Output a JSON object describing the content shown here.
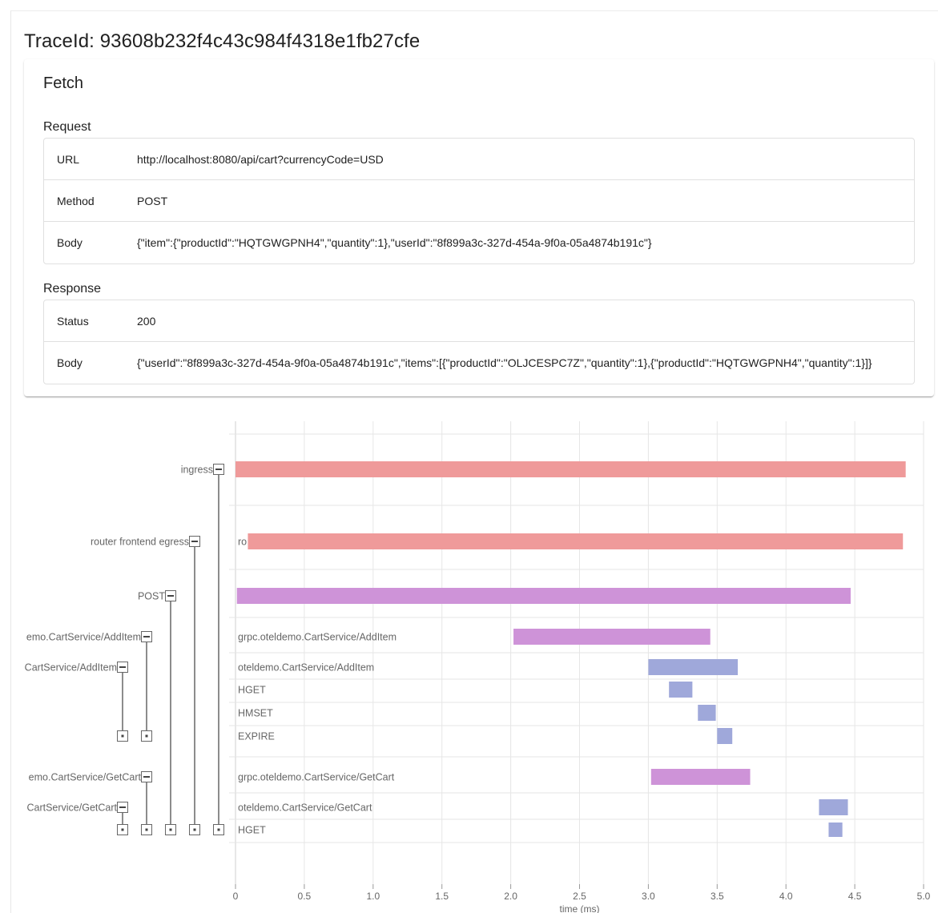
{
  "trace": {
    "title": "TraceId: 93608b232f4c43c984f4318e1fb27cfe"
  },
  "fetch": {
    "title": "Fetch",
    "request_label": "Request",
    "response_label": "Response",
    "request": [
      {
        "key": "URL",
        "value": "http://localhost:8080/api/cart?currencyCode=USD"
      },
      {
        "key": "Method",
        "value": "POST"
      },
      {
        "key": "Body",
        "value": "{\"item\":{\"productId\":\"HQTGWGPNH4\",\"quantity\":1},\"userId\":\"8f899a3c-327d-454a-9f0a-05a4874b191c\"}"
      }
    ],
    "response": [
      {
        "key": "Status",
        "value": "200"
      },
      {
        "key": "Body",
        "value": "{\"userId\":\"8f899a3c-327d-454a-9f0a-05a4874b191c\",\"items\":[{\"productId\":\"OLJCESPC7Z\",\"quantity\":1},{\"productId\":\"HQTGWGPNH4\",\"quantity\":1}]}"
      }
    ]
  },
  "chart_data": {
    "type": "bar",
    "xlabel": "time (ms)",
    "xlim": [
      0,
      5
    ],
    "ticks": [
      "0",
      "0.5",
      "1.0",
      "1.5",
      "2.0",
      "2.5",
      "3.0",
      "3.5",
      "4.0",
      "4.5",
      "5.0"
    ],
    "colors": {
      "ingress": "#ef9a9a",
      "http": "#ce93d8",
      "service": "#9fa8da"
    },
    "spans": [
      {
        "name": "ingress",
        "left_label": "ingress",
        "bar_label": "",
        "start": 0.0,
        "end": 4.87,
        "color": "#ef9a9a"
      },
      {
        "name": "router frontend egress",
        "left_label": "router frontend egress",
        "bar_label": "ro",
        "start": 0.09,
        "end": 4.85,
        "color": "#ef9a9a"
      },
      {
        "name": "POST",
        "left_label": "POST",
        "bar_label": "",
        "start": 0.01,
        "end": 4.47,
        "color": "#ce93d8"
      },
      {
        "name": "grpc.oteldemo.CartService/AddItem",
        "left_label": "emo.CartService/AddItem",
        "bar_label": "grpc.oteldemo.CartService/AddItem",
        "start": 2.02,
        "end": 3.45,
        "color": "#ce93d8"
      },
      {
        "name": "oteldemo.CartService/AddItem",
        "left_label": "CartService/AddItem",
        "bar_label": "oteldemo.CartService/AddItem",
        "start": 3.0,
        "end": 3.65,
        "color": "#9fa8da"
      },
      {
        "name": "HGET",
        "left_label": "",
        "bar_label": "HGET",
        "start": 3.15,
        "end": 3.32,
        "color": "#9fa8da"
      },
      {
        "name": "HMSET",
        "left_label": "",
        "bar_label": "HMSET",
        "start": 3.36,
        "end": 3.49,
        "color": "#9fa8da"
      },
      {
        "name": "EXPIRE",
        "left_label": "",
        "bar_label": "EXPIRE",
        "start": 3.5,
        "end": 3.61,
        "color": "#9fa8da"
      },
      {
        "name": "grpc.oteldemo.CartService/GetCart",
        "left_label": "emo.CartService/GetCart",
        "bar_label": "grpc.oteldemo.CartService/GetCart",
        "start": 3.02,
        "end": 3.74,
        "color": "#ce93d8"
      },
      {
        "name": "oteldemo.CartService/GetCart",
        "left_label": "CartService/GetCart",
        "bar_label": "oteldemo.CartService/GetCart",
        "start": 4.24,
        "end": 4.45,
        "color": "#9fa8da"
      },
      {
        "name": "HGET",
        "left_label": "",
        "bar_label": "HGET",
        "start": 4.31,
        "end": 4.41,
        "color": "#9fa8da"
      }
    ]
  }
}
